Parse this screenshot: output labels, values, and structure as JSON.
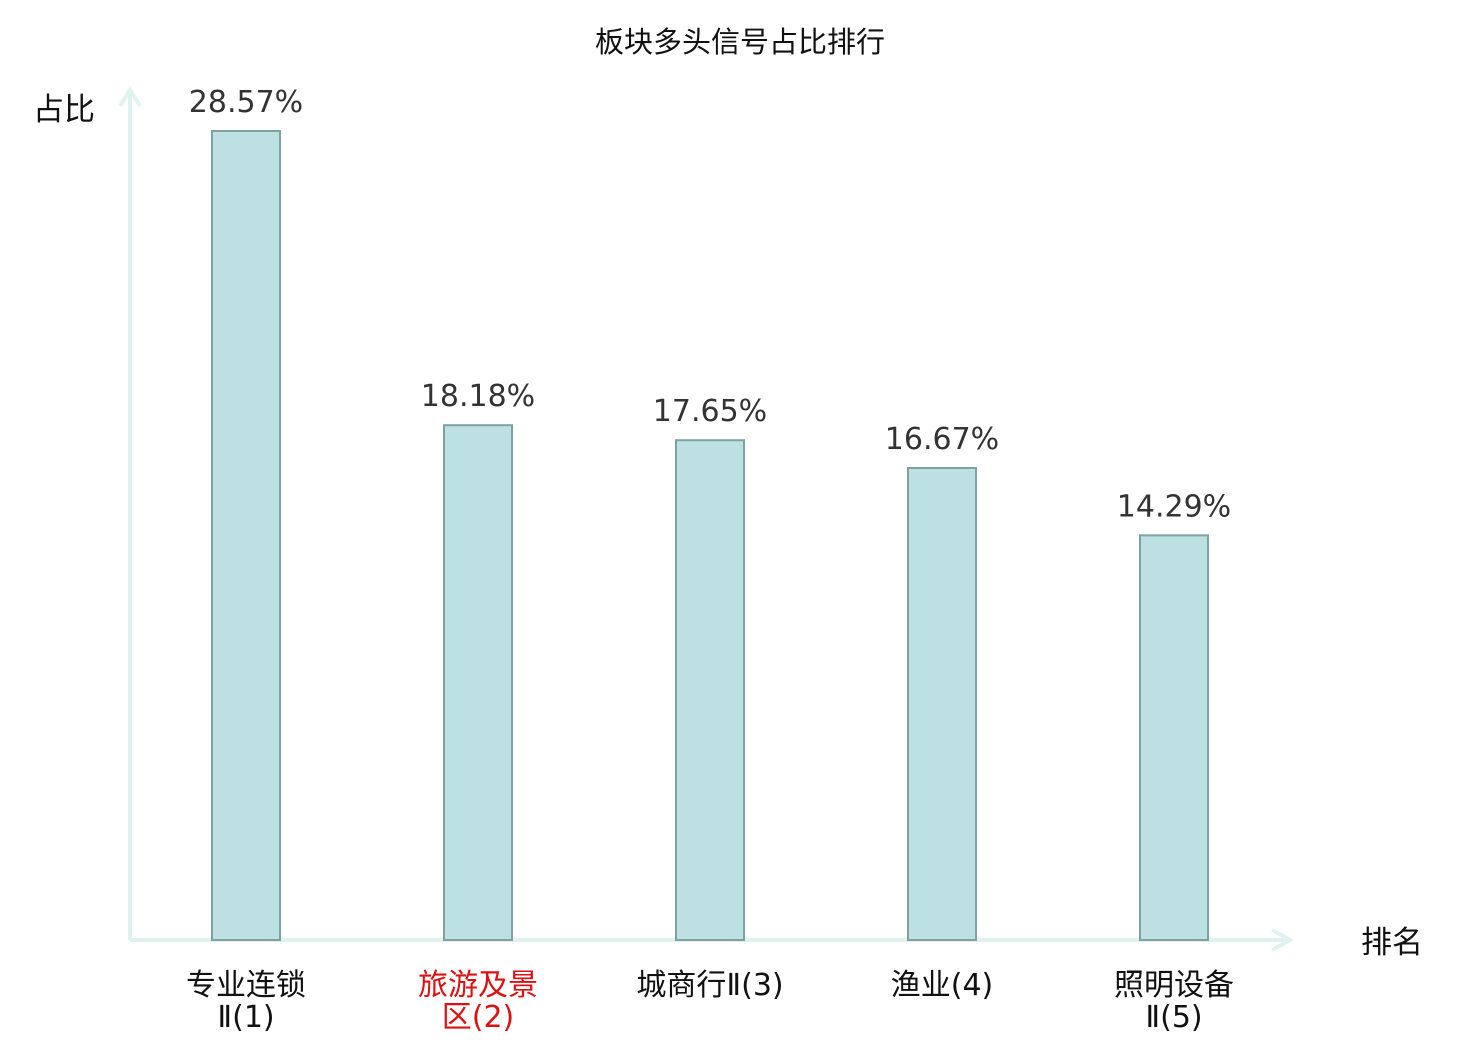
{
  "chart_data": {
    "type": "bar",
    "title": "板块多头信号占比排行",
    "xlabel": "排名",
    "ylabel": "占比",
    "unit": "%",
    "ylim": [
      0,
      28.57
    ],
    "categories": [
      {
        "lines": [
          "专业连锁",
          "Ⅱ(1)"
        ],
        "highlight": false
      },
      {
        "lines": [
          "旅游及景",
          "区(2)"
        ],
        "highlight": true
      },
      {
        "lines": [
          "城商行Ⅱ(3)"
        ],
        "highlight": false
      },
      {
        "lines": [
          "渔业(4)"
        ],
        "highlight": false
      },
      {
        "lines": [
          "照明设备",
          "Ⅱ(5)"
        ],
        "highlight": false
      }
    ],
    "values": [
      28.57,
      18.18,
      17.65,
      16.67,
      14.29
    ],
    "value_labels": [
      "28.57%",
      "18.18%",
      "17.65%",
      "16.67%",
      "14.29%"
    ],
    "grid": false,
    "legend": "none",
    "colors": {
      "bar_fill": "#bde0e2",
      "bar_stroke": "#7fa1a4",
      "axis": "#e0f2ef",
      "label_normal": "#111111",
      "label_highlight": "#dd1111"
    }
  }
}
